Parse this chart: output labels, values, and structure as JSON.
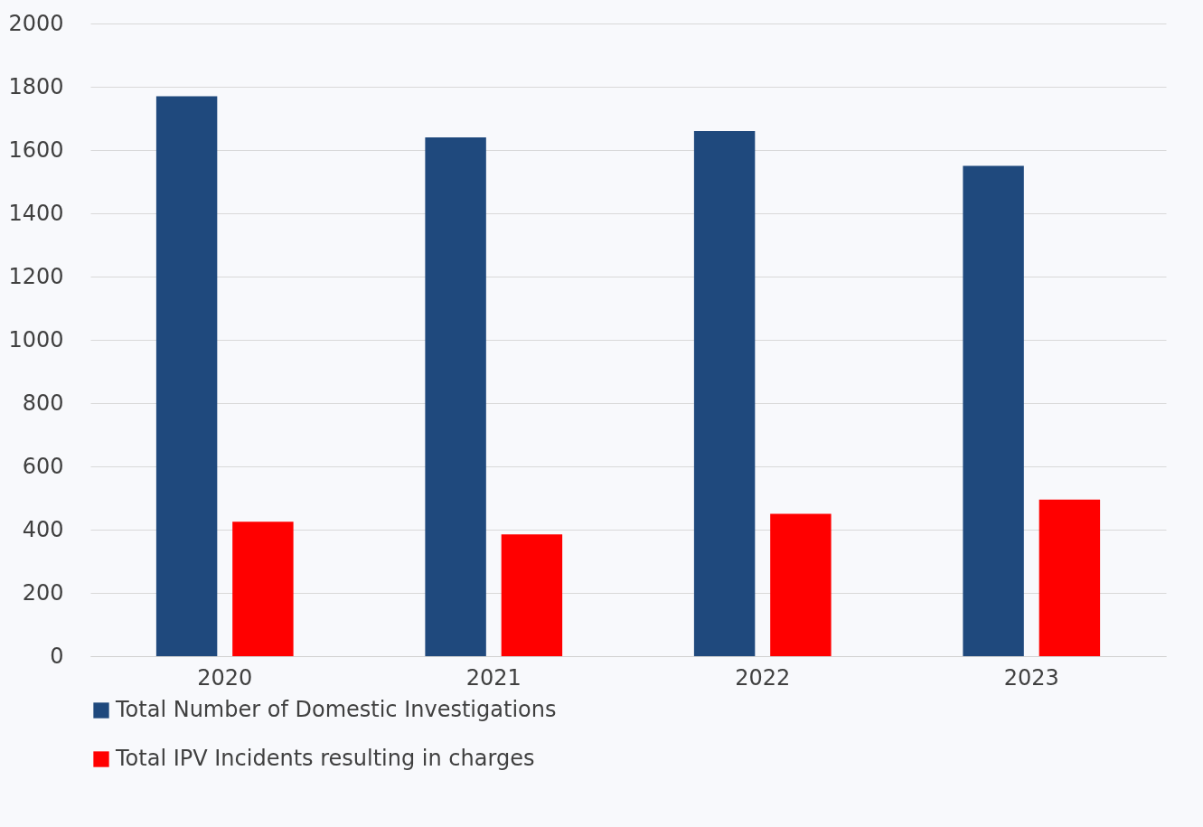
{
  "chart_data": {
    "type": "bar",
    "categories": [
      "2020",
      "2021",
      "2022",
      "2023"
    ],
    "series": [
      {
        "name": "Total Number of Domestic Investigations",
        "color": "#1f497d",
        "values": [
          1770,
          1640,
          1660,
          1550
        ]
      },
      {
        "name": "Total IPV Incidents resulting in charges",
        "color": "#ff0000",
        "values": [
          425,
          385,
          450,
          495
        ]
      }
    ],
    "ylim": [
      0,
      2000
    ],
    "yticks": [
      0,
      200,
      400,
      600,
      800,
      1000,
      1200,
      1400,
      1600,
      1800,
      2000
    ],
    "grid": "y",
    "legend": "bottom"
  }
}
